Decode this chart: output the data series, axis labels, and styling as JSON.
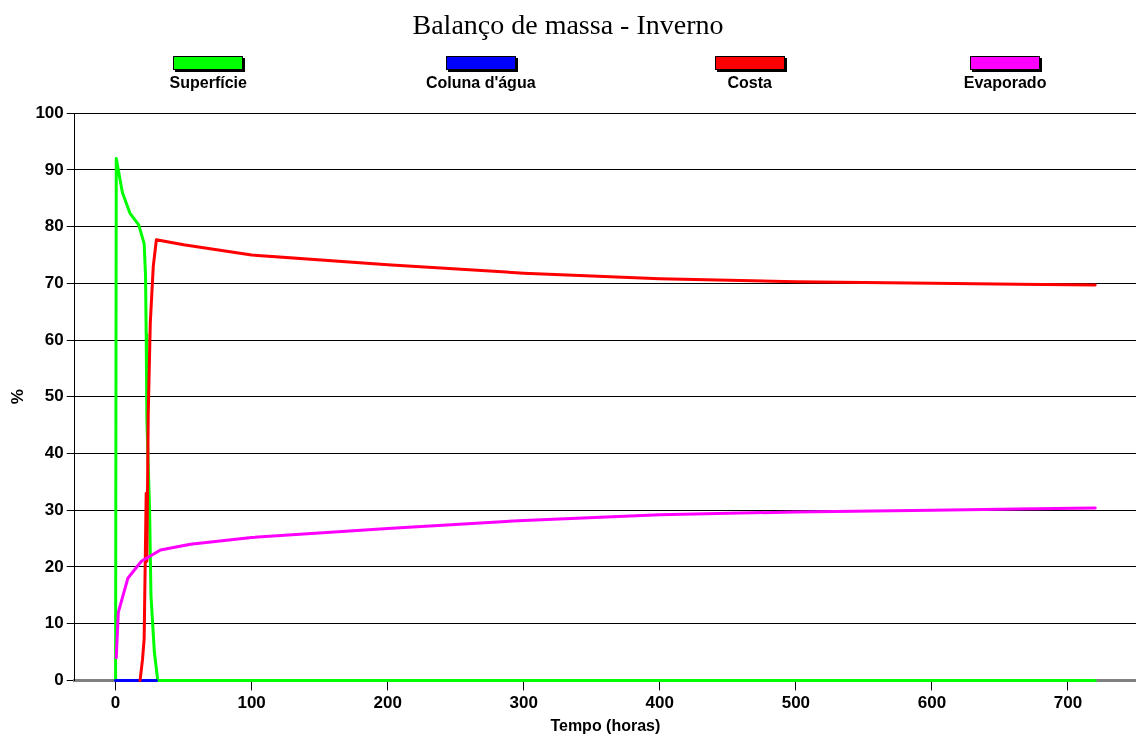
{
  "chart_data": {
    "type": "line",
    "title": "Balanço de massa - Inverno",
    "xlabel": "Tempo (horas)",
    "ylabel": "%",
    "xlim": [
      -30,
      750
    ],
    "xticks": [
      0,
      100,
      200,
      300,
      400,
      500,
      600,
      700
    ],
    "ylim": [
      0,
      100
    ],
    "yticks": [
      0,
      10,
      20,
      30,
      40,
      50,
      60,
      70,
      80,
      90,
      100
    ],
    "grid": "y",
    "legend": "top",
    "marker": "none",
    "line_style": "solid",
    "series": [
      {
        "name": "Superfície",
        "color": "#00ff00",
        "x": [
          0,
          0.5,
          5,
          10.5,
          17,
          21,
          22,
          22.5,
          23,
          25,
          26,
          28.5,
          31,
          100,
          300,
          500,
          720
        ],
        "values": [
          0,
          92,
          86,
          82.4,
          80.3,
          77,
          71.5,
          61,
          46,
          30,
          15,
          5,
          0,
          0,
          0,
          0,
          0
        ]
      },
      {
        "name": "Coluna d'água",
        "color": "#0000ff",
        "x": [
          0,
          30
        ],
        "values": [
          0,
          0
        ]
      },
      {
        "name": "Costa",
        "color": "#ff0000",
        "x": [
          18,
          19.8,
          21,
          22.5,
          23,
          24,
          25.5,
          27.7,
          30,
          50,
          100,
          200,
          300,
          400,
          500,
          600,
          720
        ],
        "values": [
          0,
          3.7,
          7.3,
          33,
          21,
          47,
          63,
          73,
          77.7,
          76.8,
          75,
          73.3,
          71.8,
          70.8,
          70.3,
          70,
          69.7
        ]
      },
      {
        "name": "Evaporado",
        "color": "#ff00ff",
        "x": [
          0.5,
          2,
          9,
          19,
          33,
          55,
          100,
          200,
          300,
          400,
          500,
          600,
          720
        ],
        "values": [
          4,
          12,
          18,
          21,
          23,
          24,
          25.2,
          26.8,
          28.2,
          29.2,
          29.7,
          30,
          30.4
        ]
      }
    ]
  }
}
